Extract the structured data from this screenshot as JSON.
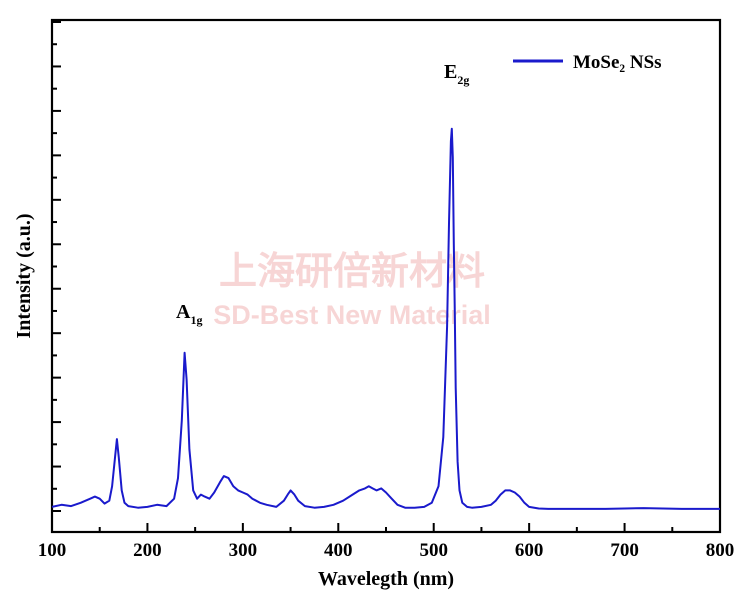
{
  "chart_data": {
    "type": "line",
    "xlabel": "Wavelegth (nm)",
    "ylabel": "Intensity (a.u.)",
    "xlim": [
      100,
      800
    ],
    "ylim": [
      0,
      100
    ],
    "x_ticks": [
      100,
      200,
      300,
      400,
      500,
      600,
      700,
      800
    ],
    "x_tick_labels": [
      "100",
      "200",
      "300",
      "400",
      "500",
      "600",
      "700",
      "800"
    ],
    "y_tick_labels_shown": false,
    "grid": false,
    "legend_position": "top-right",
    "series": [
      {
        "name": "MoSe₂ NSs",
        "color": "#1a1acc",
        "x": [
          100,
          110,
          120,
          130,
          140,
          145,
          150,
          155,
          160,
          163,
          166,
          168,
          170,
          173,
          176,
          180,
          190,
          200,
          210,
          220,
          228,
          232,
          236,
          239,
          241,
          244,
          248,
          252,
          256,
          260,
          265,
          270,
          276,
          280,
          285,
          290,
          295,
          300,
          305,
          310,
          318,
          325,
          335,
          343,
          347,
          350,
          354,
          358,
          365,
          375,
          385,
          395,
          405,
          415,
          422,
          428,
          432,
          436,
          440,
          445,
          450,
          456,
          462,
          470,
          480,
          490,
          498,
          505,
          510,
          514,
          516,
          518,
          519,
          520,
          521,
          522,
          523,
          525,
          527,
          530,
          535,
          540,
          550,
          560,
          565,
          570,
          575,
          580,
          585,
          590,
          595,
          600,
          610,
          620,
          640,
          660,
          680,
          700,
          720,
          740,
          760,
          780,
          800
        ],
        "values": [
          1.0,
          1.5,
          1.2,
          2.0,
          3.0,
          3.5,
          3.0,
          1.8,
          2.5,
          6.0,
          13.0,
          17.5,
          13.0,
          5.0,
          2.0,
          1.2,
          0.8,
          1.0,
          1.5,
          1.2,
          3.0,
          8.0,
          22.0,
          38.5,
          32.0,
          15.0,
          5.0,
          3.0,
          4.0,
          3.5,
          3.0,
          4.5,
          7.0,
          8.5,
          8.0,
          6.0,
          5.0,
          4.5,
          4.0,
          3.0,
          2.0,
          1.5,
          1.0,
          2.5,
          4.0,
          5.0,
          4.0,
          2.5,
          1.2,
          0.8,
          1.0,
          1.5,
          2.5,
          4.0,
          5.0,
          5.5,
          6.0,
          5.5,
          5.0,
          5.5,
          4.5,
          3.0,
          1.5,
          0.8,
          0.8,
          1.0,
          2.0,
          6.0,
          18.0,
          45.0,
          70.0,
          90.0,
          93.0,
          86.0,
          65.0,
          50.0,
          30.0,
          12.0,
          5.0,
          2.0,
          1.0,
          0.8,
          1.0,
          1.5,
          2.5,
          4.0,
          5.0,
          5.0,
          4.5,
          3.5,
          2.0,
          1.0,
          0.6,
          0.5,
          0.5,
          0.5,
          0.5,
          0.6,
          0.7,
          0.6,
          0.5,
          0.5,
          0.5
        ]
      }
    ],
    "annotations": [
      {
        "main": "A",
        "sub": "1g",
        "x": 239,
        "y": 38.5
      },
      {
        "main": "E",
        "sub": "2g",
        "x": 520,
        "y": 93
      }
    ]
  },
  "legend": {
    "label": "MoSe₂ NSs",
    "color": "#1a1acc"
  },
  "watermark": {
    "line1": "上海研倍新材料",
    "line2": "SD-Best New Material"
  }
}
